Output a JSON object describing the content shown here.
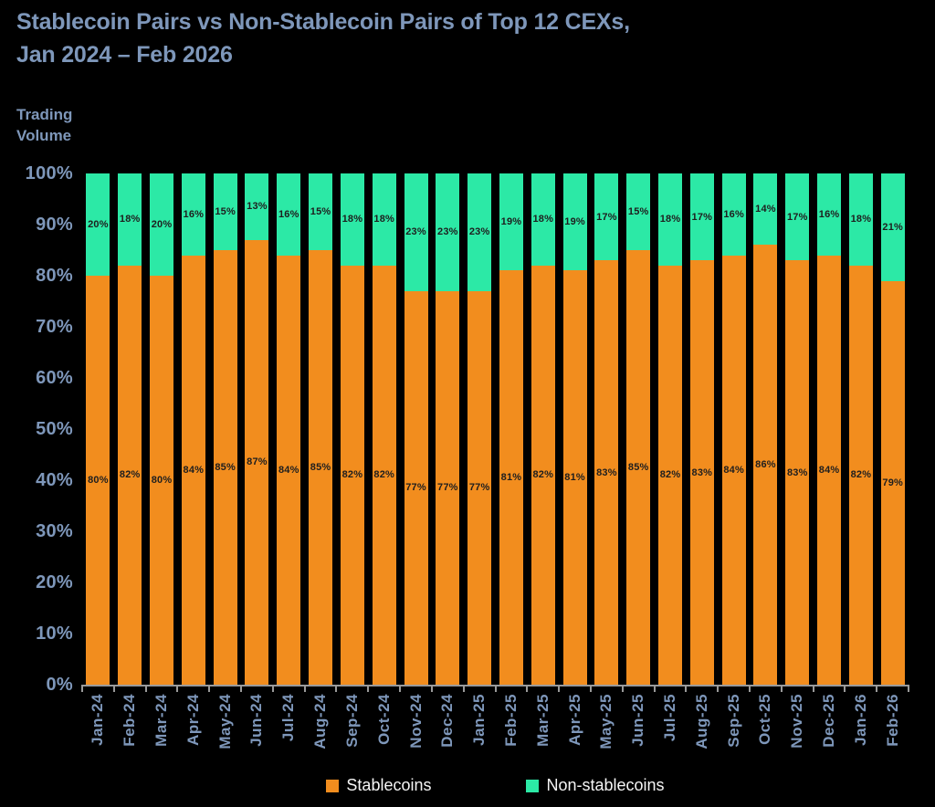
{
  "title": {
    "line1": "Stablecoin Pairs vs Non-Stablecoin Pairs of Top 12 CEXs,",
    "line2": "Jan 2024 – Feb 2026"
  },
  "y_axis_title": {
    "line1": "Trading",
    "line2": "Volume"
  },
  "colors": {
    "background": "#000000",
    "heading": "#7E97BA",
    "stablecoins": "#F28D1E",
    "non_stablecoins": "#2CE9A6",
    "bar_label": "#1E1E1E",
    "legend_text": "#F5F5F5",
    "axis": "#9A9A9A"
  },
  "legend": {
    "stablecoins": "Stablecoins",
    "non_stablecoins": "Non-stablecoins"
  },
  "chart_data": {
    "type": "bar",
    "stacked": true,
    "title": "Stablecoin Pairs vs Non-Stablecoin Pairs of Top 12 CEXs, Jan 2024 – Feb 2026",
    "ylabel": "Trading Volume",
    "ylim": [
      0,
      100
    ],
    "grid": false,
    "y_ticks": [
      "100%",
      "90%",
      "80%",
      "70%",
      "60%",
      "50%",
      "40%",
      "30%",
      "20%",
      "10%",
      "0%"
    ],
    "legend_position": "bottom",
    "categories": [
      "Jan-24",
      "Feb-24",
      "Mar-24",
      "Apr-24",
      "May-24",
      "Jun-24",
      "Jul-24",
      "Aug-24",
      "Sep-24",
      "Oct-24",
      "Nov-24",
      "Dec-24",
      "Jan-25",
      "Feb-25",
      "Mar-25",
      "Apr-25",
      "May-25",
      "Jun-25",
      "Jul-25",
      "Aug-25",
      "Sep-25",
      "Oct-25",
      "Nov-25",
      "Dec-25",
      "Jan-26",
      "Feb-26"
    ],
    "series": [
      {
        "name": "Stablecoins",
        "color": "#F28D1E",
        "values": [
          80,
          82,
          80,
          84,
          85,
          87,
          84,
          85,
          82,
          82,
          77,
          77,
          77,
          81,
          82,
          81,
          83,
          85,
          82,
          83,
          84,
          86,
          83,
          84,
          82,
          79
        ],
        "label_suffix": "%"
      },
      {
        "name": "Non-stablecoins",
        "color": "#2CE9A6",
        "values": [
          20,
          18,
          20,
          16,
          15,
          13,
          16,
          15,
          18,
          18,
          23,
          23,
          23,
          19,
          18,
          19,
          17,
          15,
          18,
          17,
          16,
          14,
          17,
          16,
          18,
          21
        ],
        "label_suffix": "%"
      }
    ]
  }
}
